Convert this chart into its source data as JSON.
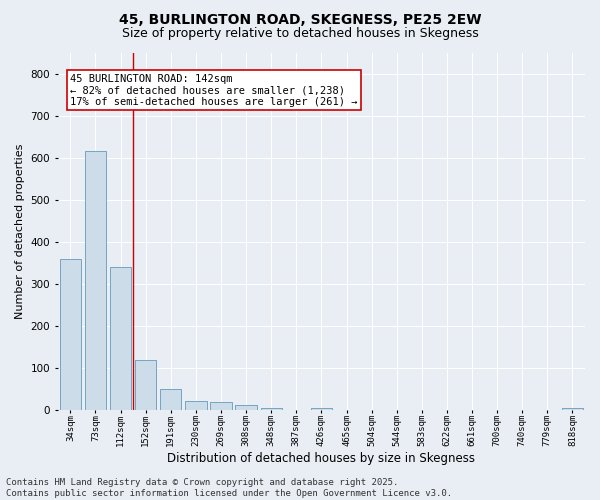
{
  "title": "45, BURLINGTON ROAD, SKEGNESS, PE25 2EW",
  "subtitle": "Size of property relative to detached houses in Skegness",
  "xlabel": "Distribution of detached houses by size in Skegness",
  "ylabel": "Number of detached properties",
  "categories": [
    "34sqm",
    "73sqm",
    "112sqm",
    "152sqm",
    "191sqm",
    "230sqm",
    "269sqm",
    "308sqm",
    "348sqm",
    "387sqm",
    "426sqm",
    "465sqm",
    "504sqm",
    "544sqm",
    "583sqm",
    "622sqm",
    "661sqm",
    "700sqm",
    "740sqm",
    "779sqm",
    "818sqm"
  ],
  "values": [
    360,
    615,
    340,
    120,
    50,
    22,
    18,
    12,
    5,
    0,
    5,
    0,
    0,
    0,
    0,
    0,
    0,
    0,
    0,
    0,
    5
  ],
  "bar_color": "#ccdce8",
  "bar_edge_color": "#6699bb",
  "vline_x": 2.5,
  "vline_color": "#cc0000",
  "annotation_text": "45 BURLINGTON ROAD: 142sqm\n← 82% of detached houses are smaller (1,238)\n17% of semi-detached houses are larger (261) →",
  "annotation_box_color": "#ffffff",
  "annotation_box_edge_color": "#cc0000",
  "ylim": [
    0,
    850
  ],
  "yticks": [
    0,
    100,
    200,
    300,
    400,
    500,
    600,
    700,
    800
  ],
  "footnote": "Contains HM Land Registry data © Crown copyright and database right 2025.\nContains public sector information licensed under the Open Government Licence v3.0.",
  "bg_color": "#e8eef4",
  "grid_color": "#ffffff",
  "title_fontsize": 10,
  "subtitle_fontsize": 9,
  "annot_fontsize": 7.5,
  "footnote_fontsize": 6.5,
  "ylabel_fontsize": 8,
  "xlabel_fontsize": 8.5
}
